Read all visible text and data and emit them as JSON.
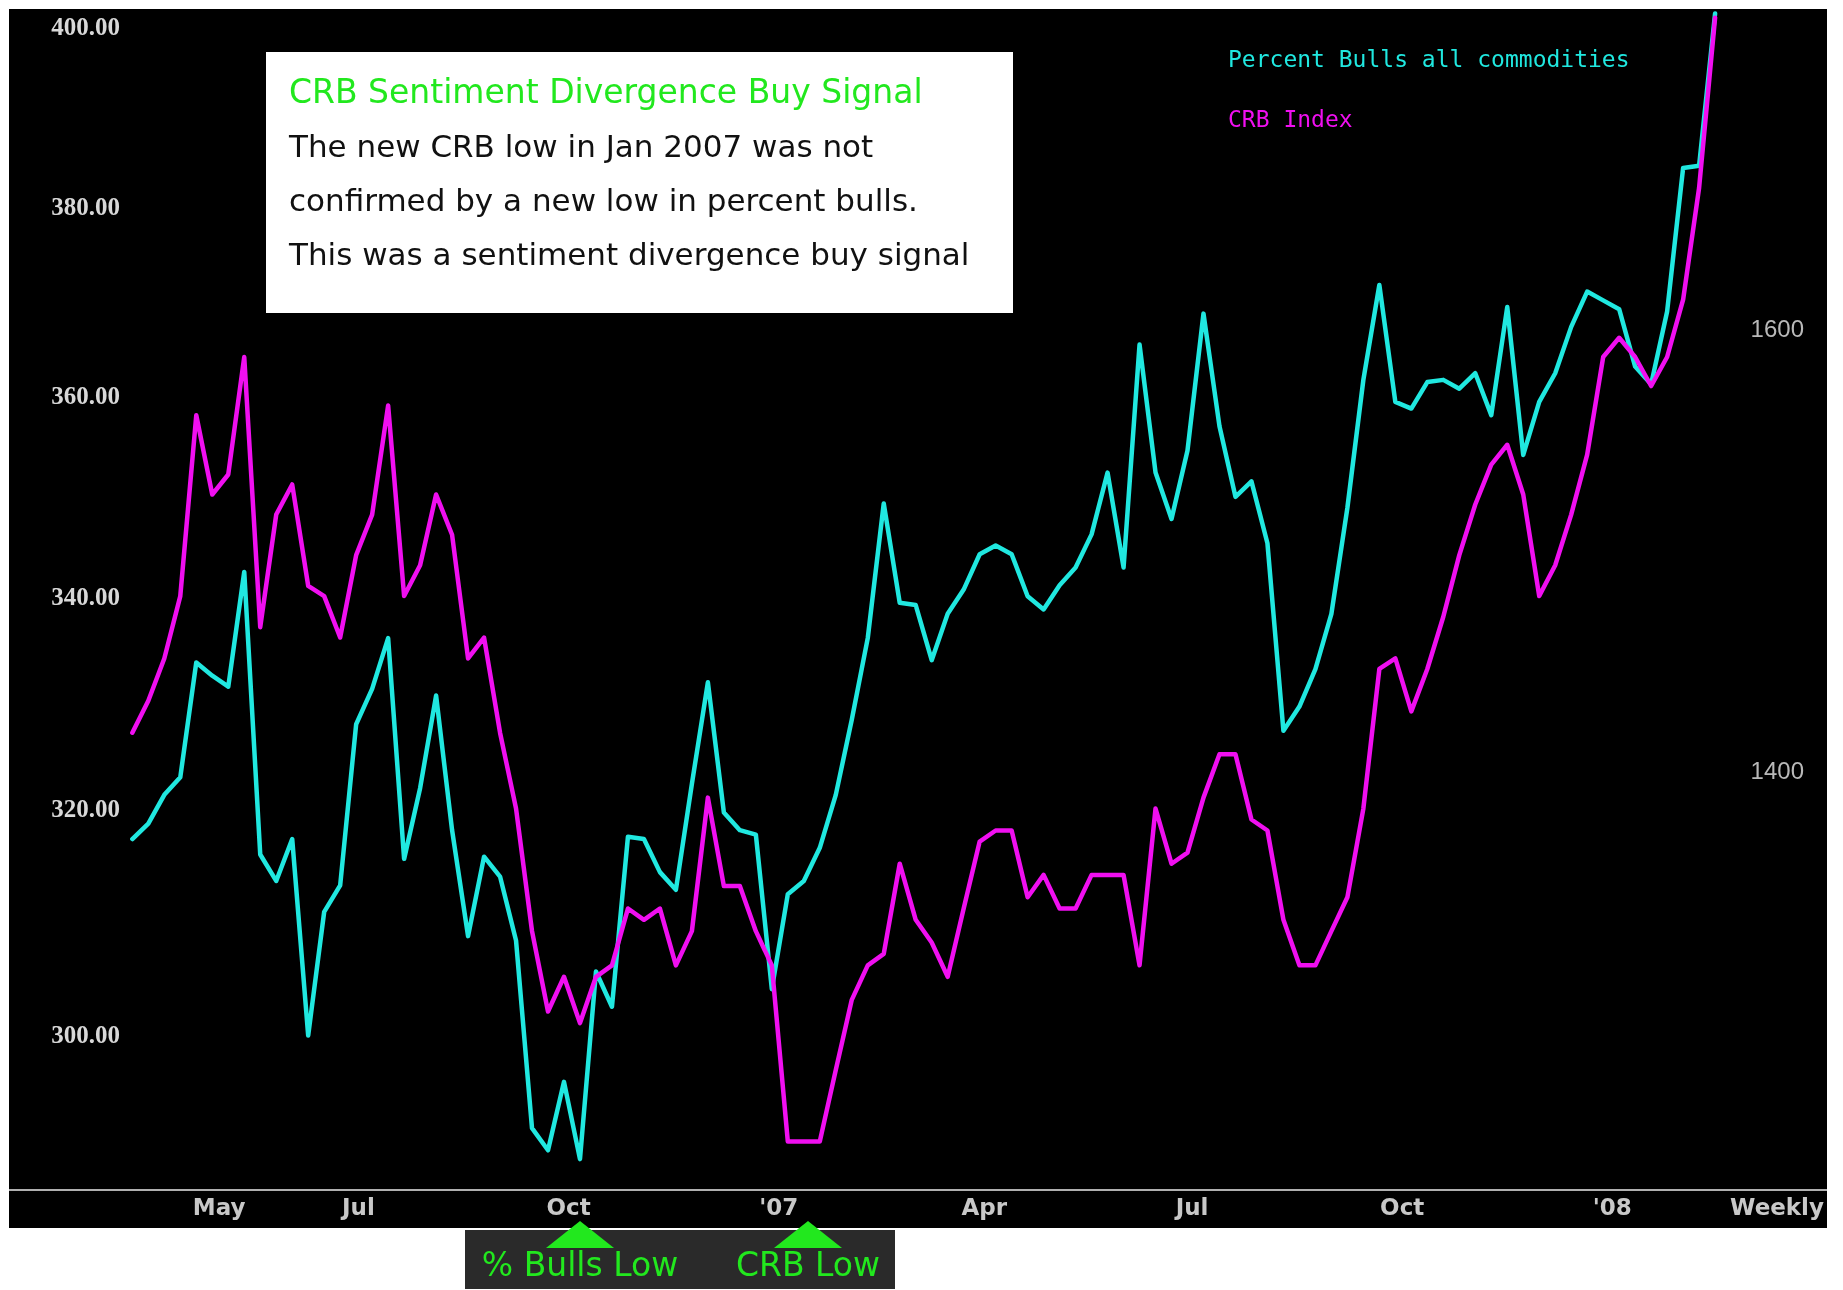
{
  "chart_data": {
    "type": "line",
    "title": "CRB Sentiment Divergence Buy Signal",
    "annotations": [
      "The new CRB low in Jan 2007 was not confirmed by a new low in percent bulls. This was a sentiment divergence buy signal",
      "Weekly",
      "% Bulls Low",
      "CRB Low"
    ],
    "x": [
      "2006-03-24",
      "2006-03-31",
      "2006-04-07",
      "2006-04-14",
      "2006-04-21",
      "2006-04-28",
      "2006-05-05",
      "2006-05-12",
      "2006-05-19",
      "2006-05-26",
      "2006-06-02",
      "2006-06-09",
      "2006-06-16",
      "2006-06-23",
      "2006-06-30",
      "2006-07-07",
      "2006-07-14",
      "2006-07-21",
      "2006-07-28",
      "2006-08-04",
      "2006-08-11",
      "2006-08-18",
      "2006-08-25",
      "2006-09-01",
      "2006-09-08",
      "2006-09-15",
      "2006-09-22",
      "2006-09-29",
      "2006-10-06",
      "2006-10-13",
      "2006-10-20",
      "2006-10-27",
      "2006-11-03",
      "2006-11-10",
      "2006-11-17",
      "2006-11-24",
      "2006-12-01",
      "2006-12-08",
      "2006-12-15",
      "2006-12-22",
      "2006-12-29",
      "2007-01-05",
      "2007-01-12",
      "2007-01-19",
      "2007-01-26",
      "2007-02-02",
      "2007-02-09",
      "2007-02-16",
      "2007-02-23",
      "2007-03-02",
      "2007-03-09",
      "2007-03-16",
      "2007-03-23",
      "2007-03-30",
      "2007-04-06",
      "2007-04-13",
      "2007-04-20",
      "2007-04-27",
      "2007-05-04",
      "2007-05-11",
      "2007-05-18",
      "2007-05-25",
      "2007-06-01",
      "2007-06-08",
      "2007-06-15",
      "2007-06-22",
      "2007-06-29",
      "2007-07-06",
      "2007-07-13",
      "2007-07-20",
      "2007-07-27",
      "2007-08-03",
      "2007-08-10",
      "2007-08-17",
      "2007-08-24",
      "2007-08-31",
      "2007-09-07",
      "2007-09-14",
      "2007-09-21",
      "2007-09-28",
      "2007-10-05",
      "2007-10-12",
      "2007-10-19",
      "2007-10-26",
      "2007-11-02",
      "2007-11-09",
      "2007-11-16",
      "2007-11-23",
      "2007-11-30",
      "2007-12-07",
      "2007-12-14",
      "2007-12-21",
      "2007-12-28",
      "2008-01-04",
      "2008-01-11",
      "2008-01-18",
      "2008-01-25",
      "2008-02-01",
      "2008-02-08",
      "2008-02-15"
    ],
    "series": [
      {
        "name": "Percent Bulls all commodities",
        "color": "#20e8e0",
        "axis": "y2",
        "values": [
          1369,
          1376,
          1389,
          1397,
          1449,
          1443,
          1438,
          1490,
          1362,
          1350,
          1369,
          1280,
          1336,
          1348,
          1421,
          1437,
          1460,
          1360,
          1392,
          1434,
          1373,
          1325,
          1361,
          1352,
          1323,
          1238,
          1228,
          1259,
          1224,
          1309,
          1293,
          1370,
          1369,
          1354,
          1346,
          1394,
          1440,
          1381,
          1373,
          1371,
          1301,
          1344,
          1350,
          1365,
          1389,
          1423,
          1460,
          1521,
          1476,
          1475,
          1450,
          1471,
          1482,
          1498,
          1502,
          1498,
          1479,
          1473,
          1484,
          1492,
          1507,
          1535,
          1492,
          1593,
          1535,
          1514,
          1545,
          1607,
          1556,
          1524,
          1531,
          1503,
          1418,
          1429,
          1446,
          1471,
          1519,
          1577,
          1620,
          1567,
          1564,
          1576,
          1577,
          1573,
          1580,
          1561,
          1610,
          1543,
          1567,
          1580,
          1601,
          1617,
          1613,
          1609,
          1583,
          1575,
          1608,
          1673,
          1674,
          1743
        ]
      },
      {
        "name": "CRB Index",
        "color": "#f00ff0",
        "values": [
          327,
          330,
          334,
          340,
          358,
          350,
          352,
          364,
          337,
          348,
          351,
          341,
          340,
          336,
          344,
          348,
          359,
          340,
          343,
          350,
          346,
          334,
          336,
          327,
          320,
          309,
          302,
          305,
          301,
          305,
          306,
          311,
          310,
          311,
          306,
          309,
          321,
          313,
          313,
          309,
          306,
          291,
          291,
          291,
          297,
          303,
          306,
          307,
          315,
          310,
          308,
          305,
          311,
          317,
          318,
          318,
          312,
          314,
          311,
          311,
          314,
          314,
          314,
          306,
          320,
          315,
          316,
          321,
          325,
          325,
          319,
          318,
          310,
          306,
          306,
          309,
          312,
          320,
          333,
          334,
          329,
          333,
          338,
          344,
          349,
          353,
          355,
          350,
          340,
          343,
          348,
          354,
          364,
          366,
          364,
          361,
          364,
          370,
          382,
          401
        ]
      }
    ],
    "xlim": [
      "2006-01-29",
      "2008-04-04"
    ],
    "xticks": [
      {
        "value": "2006-05-01",
        "label": "May"
      },
      {
        "value": "2006-07-01",
        "label": "Jul"
      },
      {
        "value": "2006-10-01",
        "label": "Oct"
      },
      {
        "value": "2007-01-01",
        "label": "'07"
      },
      {
        "value": "2007-04-01",
        "label": "Apr"
      },
      {
        "value": "2007-07-01",
        "label": "Jul"
      },
      {
        "value": "2007-10-01",
        "label": "Oct"
      },
      {
        "value": "2008-01-01",
        "label": "'08"
      }
    ],
    "ylim": [
      287,
      402
    ],
    "yticks": [
      {
        "value": 300,
        "label": "300.00"
      },
      {
        "value": 320,
        "label": "320.00"
      },
      {
        "value": 340,
        "label": "340.00"
      },
      {
        "value": 360,
        "label": "360.00"
      },
      {
        "value": 380,
        "label": "380.00"
      },
      {
        "value": 400,
        "label": "400.00"
      }
    ],
    "y2lim": [
      1210,
      1745
    ],
    "y2ticks": [
      1400,
      1600
    ],
    "log": true,
    "grid": false,
    "legend": "top right",
    "line_style": "solid"
  }
}
